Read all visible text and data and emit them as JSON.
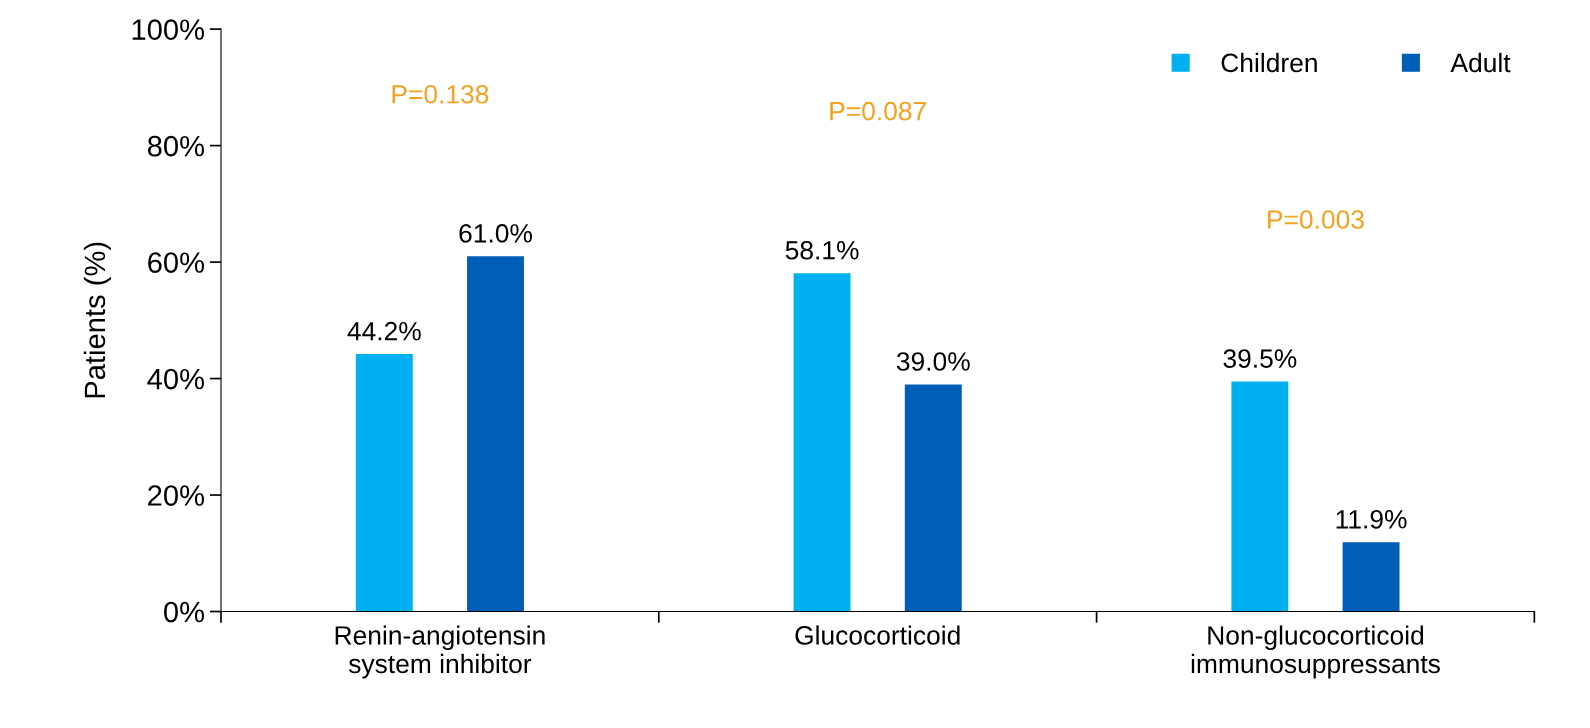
{
  "chart_data": {
    "type": "bar",
    "ylabel": "Patients (%)",
    "categories": [
      "Renin-angiotensin\nsystem inhibitor",
      "Glucocorticoid",
      "Non-glucocorticoid\nimmunosuppressants"
    ],
    "series": [
      {
        "name": "Children",
        "color": "#00b0f0",
        "values": [
          44.2,
          58.1,
          39.5
        ],
        "value_labels": [
          "44.2%",
          "58.1%",
          "39.5%"
        ]
      },
      {
        "name": "Adult",
        "color": "#005eb8",
        "values": [
          61.0,
          39.0,
          11.9
        ],
        "value_labels": [
          "61.0%",
          "39.0%",
          "11.9%"
        ]
      }
    ],
    "ylim": [
      0,
      100
    ],
    "yticks": [
      {
        "value": 0,
        "label": "0%"
      },
      {
        "value": 20,
        "label": "20%"
      },
      {
        "value": 40,
        "label": "40%"
      },
      {
        "value": 60,
        "label": "60%"
      },
      {
        "value": 80,
        "label": "80%"
      },
      {
        "value": 100,
        "label": "100%"
      }
    ],
    "annotations": [
      "P=0.138",
      "P=0.087",
      "P=0.003"
    ],
    "legend": "top right",
    "grid": false
  }
}
